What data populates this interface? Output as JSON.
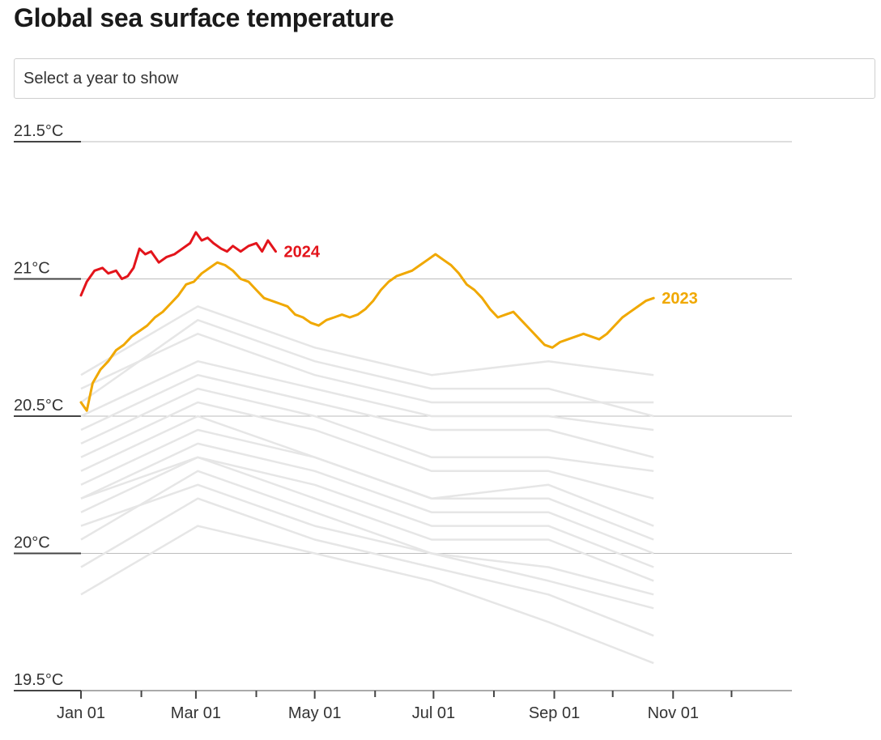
{
  "title": "Global sea surface temperature",
  "year_select": {
    "placeholder": "Select a year to show"
  },
  "colors": {
    "highlight_2024": "#e3141b",
    "highlight_2023": "#f0a800",
    "background_years": "#e6e6e6",
    "gridline": "#bdbdbd",
    "axis": "#555555"
  },
  "chart_data": {
    "type": "line",
    "title": "Global sea surface temperature",
    "xlabel": "",
    "ylabel": "",
    "x_domain": [
      "Jan 01",
      "Dec 31"
    ],
    "ylim": [
      19.5,
      21.5
    ],
    "y_ticks": [
      {
        "value": 19.5,
        "label": "19.5°C"
      },
      {
        "value": 20.0,
        "label": "20°C"
      },
      {
        "value": 20.5,
        "label": "20.5°C"
      },
      {
        "value": 21.0,
        "label": "21°C"
      },
      {
        "value": 21.5,
        "label": "21.5°C"
      }
    ],
    "x_ticks": [
      {
        "day": 0,
        "label": "Jan 01"
      },
      {
        "day": 59,
        "label": "Mar 01"
      },
      {
        "day": 120,
        "label": "May 01"
      },
      {
        "day": 181,
        "label": "Jul 01"
      },
      {
        "day": 243,
        "label": "Sep 01"
      },
      {
        "day": 304,
        "label": "Nov 01"
      }
    ],
    "minor_x_ticks": [
      31,
      90,
      151,
      212,
      273,
      334
    ],
    "grid": true,
    "highlighted_series": [
      {
        "name": "2024",
        "color": "#e3141b",
        "points": [
          [
            0,
            20.94
          ],
          [
            3,
            20.99
          ],
          [
            7,
            21.03
          ],
          [
            11,
            21.04
          ],
          [
            14,
            21.02
          ],
          [
            18,
            21.03
          ],
          [
            21,
            21.0
          ],
          [
            24,
            21.01
          ],
          [
            27,
            21.04
          ],
          [
            30,
            21.11
          ],
          [
            33,
            21.09
          ],
          [
            36,
            21.1
          ],
          [
            40,
            21.06
          ],
          [
            44,
            21.08
          ],
          [
            48,
            21.09
          ],
          [
            52,
            21.11
          ],
          [
            56,
            21.13
          ],
          [
            59,
            21.17
          ],
          [
            62,
            21.14
          ],
          [
            65,
            21.15
          ],
          [
            68,
            21.13
          ],
          [
            72,
            21.11
          ],
          [
            75,
            21.1
          ],
          [
            78,
            21.12
          ],
          [
            82,
            21.1
          ],
          [
            86,
            21.12
          ],
          [
            90,
            21.13
          ],
          [
            93,
            21.1
          ],
          [
            96,
            21.14
          ],
          [
            100,
            21.1
          ]
        ]
      },
      {
        "name": "2023",
        "color": "#f0a800",
        "points": [
          [
            0,
            20.55
          ],
          [
            3,
            20.52
          ],
          [
            6,
            20.62
          ],
          [
            10,
            20.67
          ],
          [
            14,
            20.7
          ],
          [
            18,
            20.74
          ],
          [
            22,
            20.76
          ],
          [
            26,
            20.79
          ],
          [
            30,
            20.81
          ],
          [
            34,
            20.83
          ],
          [
            38,
            20.86
          ],
          [
            42,
            20.88
          ],
          [
            46,
            20.91
          ],
          [
            50,
            20.94
          ],
          [
            54,
            20.98
          ],
          [
            58,
            20.99
          ],
          [
            62,
            21.02
          ],
          [
            66,
            21.04
          ],
          [
            70,
            21.06
          ],
          [
            74,
            21.05
          ],
          [
            78,
            21.03
          ],
          [
            82,
            21.0
          ],
          [
            86,
            20.99
          ],
          [
            90,
            20.96
          ],
          [
            94,
            20.93
          ],
          [
            98,
            20.92
          ],
          [
            102,
            20.91
          ],
          [
            106,
            20.9
          ],
          [
            110,
            20.87
          ],
          [
            114,
            20.86
          ],
          [
            118,
            20.84
          ],
          [
            122,
            20.83
          ],
          [
            126,
            20.85
          ],
          [
            130,
            20.86
          ],
          [
            134,
            20.87
          ],
          [
            138,
            20.86
          ],
          [
            142,
            20.87
          ],
          [
            146,
            20.89
          ],
          [
            150,
            20.92
          ],
          [
            154,
            20.96
          ],
          [
            158,
            20.99
          ],
          [
            162,
            21.01
          ],
          [
            166,
            21.02
          ],
          [
            170,
            21.03
          ],
          [
            174,
            21.05
          ],
          [
            178,
            21.07
          ],
          [
            182,
            21.09
          ],
          [
            186,
            21.07
          ],
          [
            190,
            21.05
          ],
          [
            194,
            21.02
          ],
          [
            198,
            20.98
          ],
          [
            202,
            20.96
          ],
          [
            206,
            20.93
          ],
          [
            210,
            20.89
          ],
          [
            214,
            20.86
          ],
          [
            218,
            20.87
          ],
          [
            222,
            20.88
          ],
          [
            226,
            20.85
          ],
          [
            230,
            20.82
          ],
          [
            234,
            20.79
          ],
          [
            238,
            20.76
          ],
          [
            242,
            20.75
          ],
          [
            246,
            20.77
          ],
          [
            250,
            20.78
          ],
          [
            254,
            20.79
          ],
          [
            258,
            20.8
          ],
          [
            262,
            20.79
          ],
          [
            266,
            20.78
          ],
          [
            270,
            20.8
          ],
          [
            274,
            20.83
          ],
          [
            278,
            20.86
          ],
          [
            282,
            20.88
          ],
          [
            286,
            20.9
          ],
          [
            290,
            20.92
          ],
          [
            294,
            20.93
          ]
        ]
      }
    ],
    "background_series_note_visible": false,
    "background_series": [
      {
        "points": [
          [
            0,
            20.3
          ],
          [
            60,
            20.5
          ],
          [
            120,
            20.35
          ],
          [
            180,
            20.2
          ],
          [
            240,
            20.25
          ],
          [
            294,
            20.1
          ]
        ]
      },
      {
        "points": [
          [
            0,
            20.2
          ],
          [
            60,
            20.4
          ],
          [
            120,
            20.3
          ],
          [
            180,
            20.15
          ],
          [
            240,
            20.15
          ],
          [
            294,
            20.0
          ]
        ]
      },
      {
        "points": [
          [
            0,
            20.45
          ],
          [
            60,
            20.65
          ],
          [
            120,
            20.55
          ],
          [
            180,
            20.45
          ],
          [
            240,
            20.45
          ],
          [
            294,
            20.35
          ]
        ]
      },
      {
        "points": [
          [
            0,
            20.15
          ],
          [
            60,
            20.35
          ],
          [
            120,
            20.2
          ],
          [
            180,
            20.05
          ],
          [
            240,
            20.05
          ],
          [
            294,
            19.9
          ]
        ]
      },
      {
        "points": [
          [
            0,
            20.55
          ],
          [
            60,
            20.85
          ],
          [
            120,
            20.7
          ],
          [
            180,
            20.6
          ],
          [
            240,
            20.6
          ],
          [
            294,
            20.5
          ]
        ]
      },
      {
        "points": [
          [
            0,
            20.25
          ],
          [
            60,
            20.45
          ],
          [
            120,
            20.35
          ],
          [
            180,
            20.2
          ],
          [
            240,
            20.2
          ],
          [
            294,
            20.05
          ]
        ]
      },
      {
        "points": [
          [
            0,
            20.65
          ],
          [
            60,
            20.9
          ],
          [
            120,
            20.75
          ],
          [
            180,
            20.65
          ],
          [
            240,
            20.7
          ],
          [
            294,
            20.65
          ]
        ]
      },
      {
        "points": [
          [
            0,
            20.05
          ],
          [
            60,
            20.3
          ],
          [
            120,
            20.15
          ],
          [
            180,
            20.0
          ],
          [
            240,
            19.95
          ],
          [
            294,
            19.85
          ]
        ]
      },
      {
        "points": [
          [
            0,
            20.35
          ],
          [
            60,
            20.55
          ],
          [
            120,
            20.45
          ],
          [
            180,
            20.3
          ],
          [
            240,
            20.3
          ],
          [
            294,
            20.2
          ]
        ]
      },
      {
        "points": [
          [
            0,
            19.85
          ],
          [
            60,
            20.1
          ],
          [
            120,
            20.0
          ],
          [
            180,
            19.9
          ],
          [
            240,
            19.75
          ],
          [
            294,
            19.6
          ]
        ]
      },
      {
        "points": [
          [
            0,
            20.5
          ],
          [
            60,
            20.7
          ],
          [
            120,
            20.6
          ],
          [
            180,
            20.5
          ],
          [
            240,
            20.5
          ],
          [
            294,
            20.45
          ]
        ]
      },
      {
        "points": [
          [
            0,
            20.1
          ],
          [
            60,
            20.25
          ],
          [
            120,
            20.1
          ],
          [
            180,
            20.0
          ],
          [
            240,
            19.9
          ],
          [
            294,
            19.8
          ]
        ]
      },
      {
        "points": [
          [
            0,
            20.4
          ],
          [
            60,
            20.6
          ],
          [
            120,
            20.5
          ],
          [
            180,
            20.35
          ],
          [
            240,
            20.35
          ],
          [
            294,
            20.3
          ]
        ]
      },
      {
        "points": [
          [
            0,
            19.95
          ],
          [
            60,
            20.2
          ],
          [
            120,
            20.05
          ],
          [
            180,
            19.95
          ],
          [
            240,
            19.85
          ],
          [
            294,
            19.7
          ]
        ]
      },
      {
        "points": [
          [
            0,
            20.6
          ],
          [
            60,
            20.8
          ],
          [
            120,
            20.65
          ],
          [
            180,
            20.55
          ],
          [
            240,
            20.55
          ],
          [
            294,
            20.55
          ]
        ]
      },
      {
        "points": [
          [
            0,
            20.2
          ],
          [
            60,
            20.35
          ],
          [
            120,
            20.25
          ],
          [
            180,
            20.1
          ],
          [
            240,
            20.1
          ],
          [
            294,
            19.95
          ]
        ]
      }
    ]
  }
}
